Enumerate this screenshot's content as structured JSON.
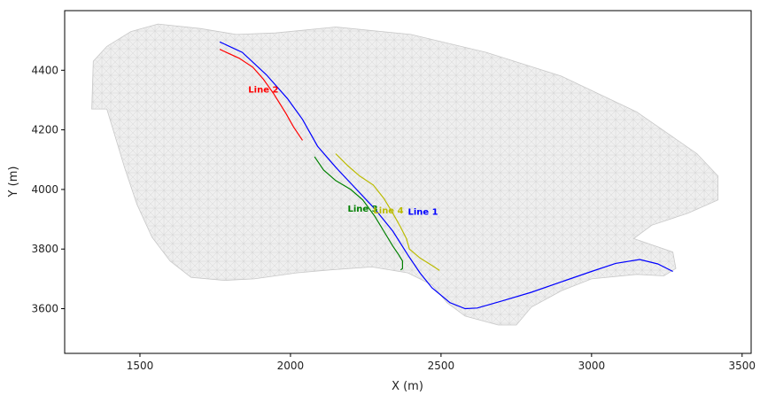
{
  "chart_data": {
    "type": "line",
    "title": "",
    "xlabel": "X (m)",
    "ylabel": "Y (m)",
    "xlim": [
      1250,
      3530
    ],
    "ylim": [
      3450,
      4600
    ],
    "xticks": [
      1500,
      2000,
      2500,
      3000,
      3500
    ],
    "yticks": [
      3600,
      3800,
      4000,
      4200,
      4400
    ],
    "grid": false,
    "colors": {
      "mesh": "#d9d9d9",
      "mesh_line": "#c8c8c8",
      "axis": "#000000"
    },
    "mesh_outline": [
      [
        1345,
        4430
      ],
      [
        1390,
        4480
      ],
      [
        1470,
        4530
      ],
      [
        1560,
        4555
      ],
      [
        1700,
        4540
      ],
      [
        1820,
        4520
      ],
      [
        1950,
        4525
      ],
      [
        2150,
        4545
      ],
      [
        2400,
        4520
      ],
      [
        2650,
        4460
      ],
      [
        2900,
        4380
      ],
      [
        3150,
        4260
      ],
      [
        3350,
        4120
      ],
      [
        3420,
        4045
      ],
      [
        3420,
        3965
      ],
      [
        3320,
        3920
      ],
      [
        3200,
        3880
      ],
      [
        3140,
        3835
      ],
      [
        3270,
        3790
      ],
      [
        3280,
        3735
      ],
      [
        3240,
        3710
      ],
      [
        3150,
        3715
      ],
      [
        3000,
        3700
      ],
      [
        2900,
        3660
      ],
      [
        2800,
        3605
      ],
      [
        2750,
        3545
      ],
      [
        2690,
        3545
      ],
      [
        2580,
        3575
      ],
      [
        2520,
        3620
      ],
      [
        2470,
        3680
      ],
      [
        2390,
        3720
      ],
      [
        2270,
        3740
      ],
      [
        2130,
        3730
      ],
      [
        2020,
        3720
      ],
      [
        1880,
        3700
      ],
      [
        1780,
        3695
      ],
      [
        1670,
        3705
      ],
      [
        1600,
        3760
      ],
      [
        1540,
        3840
      ],
      [
        1490,
        3950
      ],
      [
        1450,
        4070
      ],
      [
        1420,
        4170
      ],
      [
        1390,
        4270
      ],
      [
        1340,
        4270
      ]
    ],
    "series": [
      {
        "name": "Line 1",
        "color": "#0000ff",
        "label_at": [
          2390,
          3915
        ],
        "points": [
          [
            1765,
            4495
          ],
          [
            1840,
            4460
          ],
          [
            1920,
            4385
          ],
          [
            1990,
            4305
          ],
          [
            2040,
            4235
          ],
          [
            2090,
            4145
          ],
          [
            2150,
            4075
          ],
          [
            2210,
            4010
          ],
          [
            2280,
            3935
          ],
          [
            2340,
            3860
          ],
          [
            2390,
            3780
          ],
          [
            2430,
            3720
          ],
          [
            2470,
            3670
          ],
          [
            2530,
            3620
          ],
          [
            2580,
            3600
          ],
          [
            2620,
            3602
          ],
          [
            2700,
            3625
          ],
          [
            2800,
            3655
          ],
          [
            2900,
            3690
          ],
          [
            3000,
            3725
          ],
          [
            3080,
            3752
          ],
          [
            3160,
            3765
          ],
          [
            3220,
            3750
          ],
          [
            3270,
            3725
          ]
        ]
      },
      {
        "name": "Line 2",
        "color": "#ff0000",
        "label_at": [
          1860,
          4325
        ],
        "points": [
          [
            1765,
            4470
          ],
          [
            1830,
            4440
          ],
          [
            1875,
            4410
          ],
          [
            1910,
            4370
          ],
          [
            1945,
            4320
          ],
          [
            1985,
            4255
          ],
          [
            2010,
            4210
          ],
          [
            2040,
            4165
          ]
        ]
      },
      {
        "name": "Line 3",
        "color": "#008000",
        "label_at": [
          2190,
          3925
        ],
        "points": [
          [
            2080,
            4110
          ],
          [
            2110,
            4065
          ],
          [
            2150,
            4030
          ],
          [
            2200,
            4000
          ],
          [
            2240,
            3965
          ],
          [
            2280,
            3910
          ],
          [
            2310,
            3860
          ],
          [
            2340,
            3810
          ],
          [
            2360,
            3780
          ],
          [
            2372,
            3760
          ],
          [
            2372,
            3735
          ],
          [
            2366,
            3730
          ]
        ]
      },
      {
        "name": "Line 4",
        "color": "#bbbb00",
        "label_at": [
          2275,
          3920
        ],
        "points": [
          [
            2150,
            4120
          ],
          [
            2190,
            4080
          ],
          [
            2230,
            4045
          ],
          [
            2275,
            4015
          ],
          [
            2310,
            3970
          ],
          [
            2340,
            3920
          ],
          [
            2365,
            3875
          ],
          [
            2385,
            3835
          ],
          [
            2395,
            3800
          ],
          [
            2430,
            3770
          ],
          [
            2470,
            3745
          ],
          [
            2495,
            3728
          ]
        ]
      }
    ]
  }
}
